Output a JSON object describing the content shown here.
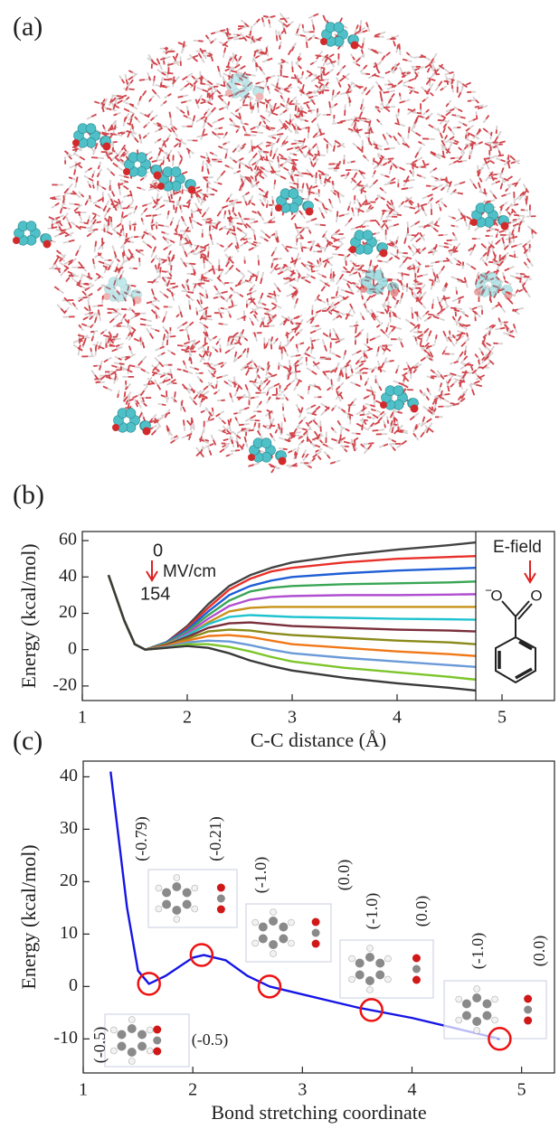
{
  "panel_a": {
    "label": "(a)"
  },
  "chart_data": [
    {
      "type": "line",
      "label": "(b)",
      "y_label": "Energy (kcal/mol)",
      "x_label": "C-C distance (Å)",
      "x": [
        1.25,
        1.4,
        1.5,
        1.6,
        1.8,
        2.0,
        2.2,
        2.4,
        2.6,
        2.8,
        3.0,
        3.5,
        4.0,
        4.5,
        4.75
      ],
      "series": [
        {
          "color": "#444444",
          "values": [
            41,
            16,
            3,
            0,
            4,
            13,
            25,
            35,
            41,
            45,
            48,
            52,
            55,
            57.5,
            59
          ]
        },
        {
          "color": "#e8312a",
          "values": [
            41,
            16,
            3,
            0,
            4,
            12,
            23,
            33,
            39,
            43,
            45,
            48,
            50,
            51,
            51.5
          ]
        },
        {
          "color": "#1f5fd6",
          "values": [
            41,
            16,
            3,
            0,
            4,
            11,
            21,
            30,
            35,
            38,
            40,
            42,
            43.5,
            44.5,
            45
          ]
        },
        {
          "color": "#3aa655",
          "values": [
            41,
            16,
            3,
            0,
            3.5,
            10,
            19,
            27,
            32,
            34,
            35,
            36,
            36.5,
            37,
            37.5
          ]
        },
        {
          "color": "#b04fd0",
          "values": [
            41,
            16,
            3,
            0,
            3,
            9,
            17,
            24,
            27.5,
            29,
            29.5,
            30,
            30,
            30.3,
            30.5
          ]
        },
        {
          "color": "#c8921a",
          "values": [
            41,
            16,
            3,
            0,
            3,
            8,
            15,
            21,
            23,
            23.5,
            23.5,
            23.5,
            23.5,
            23.5,
            23.5
          ]
        },
        {
          "color": "#1fc3cf",
          "values": [
            41,
            16,
            3,
            0,
            2.5,
            8,
            14,
            18,
            19,
            18.5,
            18,
            17.5,
            17,
            16.7,
            16.5
          ]
        },
        {
          "color": "#7a2e3a",
          "values": [
            41,
            16,
            3,
            0,
            2.5,
            7,
            12,
            14.5,
            15,
            14,
            13,
            12,
            11,
            10.5,
            10
          ]
        },
        {
          "color": "#8a8a1a",
          "values": [
            41,
            16,
            3,
            0,
            2,
            6,
            10,
            11,
            10.5,
            9,
            8,
            6.5,
            5,
            4,
            3
          ]
        },
        {
          "color": "#f07818",
          "values": [
            41,
            16,
            3,
            0,
            2,
            5,
            7.5,
            8,
            7,
            5,
            3,
            1,
            -1,
            -2.5,
            -3.5
          ]
        },
        {
          "color": "#6a9ad8",
          "values": [
            41,
            16,
            3,
            0,
            1.5,
            4,
            5,
            4.5,
            2.5,
            0,
            -2,
            -4.5,
            -6.5,
            -8.5,
            -9.5
          ]
        },
        {
          "color": "#7cc52a",
          "values": [
            41,
            16,
            3,
            0,
            1,
            3,
            3,
            1.5,
            -1,
            -4,
            -6.5,
            -10,
            -12.5,
            -15,
            -16.5
          ]
        },
        {
          "color": "#3a3a3a",
          "values": [
            41,
            16,
            3,
            0,
            1,
            2,
            1,
            -2,
            -6,
            -9,
            -11.5,
            -15.5,
            -18.5,
            -21,
            -22.5
          ]
        }
      ],
      "xlim": [
        1,
        5.5
      ],
      "ylim": [
        -28,
        65
      ],
      "xticks": [
        1,
        2,
        3,
        4,
        5
      ],
      "yticks": [
        -20,
        0,
        20,
        40,
        60
      ],
      "divider_x": 4.75,
      "annotations": [
        {
          "text": "0"
        },
        {
          "text": "MV/cm"
        },
        {
          "text": "154"
        },
        {
          "text": "E-field"
        }
      ],
      "inset_labels": [
        "−",
        "O",
        "O"
      ]
    },
    {
      "type": "line",
      "label": "(c)",
      "y_label": "Energy (kcal/mol)",
      "x_label": "Bond stretching coordinate",
      "x": [
        1.25,
        1.4,
        1.5,
        1.6,
        1.75,
        2.0,
        2.1,
        2.3,
        2.5,
        2.7,
        3.0,
        3.5,
        4.0,
        4.5,
        4.8
      ],
      "values": [
        41,
        15,
        3,
        0.5,
        2,
        5.5,
        6,
        5,
        2,
        0,
        -1.5,
        -4,
        -6,
        -8.5,
        -10
      ],
      "color": "#1515e6",
      "highlights": [
        {
          "x": 1.6,
          "y": 0.5
        },
        {
          "x": 2.08,
          "y": 6
        },
        {
          "x": 2.7,
          "y": 0
        },
        {
          "x": 3.63,
          "y": -4.5
        },
        {
          "x": 4.8,
          "y": -10
        }
      ],
      "highlight_color": "#ee1111",
      "xlim": [
        1,
        5.3
      ],
      "ylim": [
        -16.5,
        43
      ],
      "xticks": [
        1,
        2,
        3,
        4,
        5
      ],
      "yticks": [
        -10,
        0,
        10,
        20,
        30,
        40
      ],
      "annotations": [
        {
          "text": "(-0.79)"
        },
        {
          "text": "(-0.21)"
        },
        {
          "text": "(-1.0)"
        },
        {
          "text": "(0.0)"
        },
        {
          "text": "(-1.0)"
        },
        {
          "text": "(0.0)"
        },
        {
          "text": "(-1.0)"
        },
        {
          "text": "(0.0)"
        },
        {
          "text": "(-0.5)"
        },
        {
          "text": "(-0.5)"
        }
      ]
    }
  ]
}
